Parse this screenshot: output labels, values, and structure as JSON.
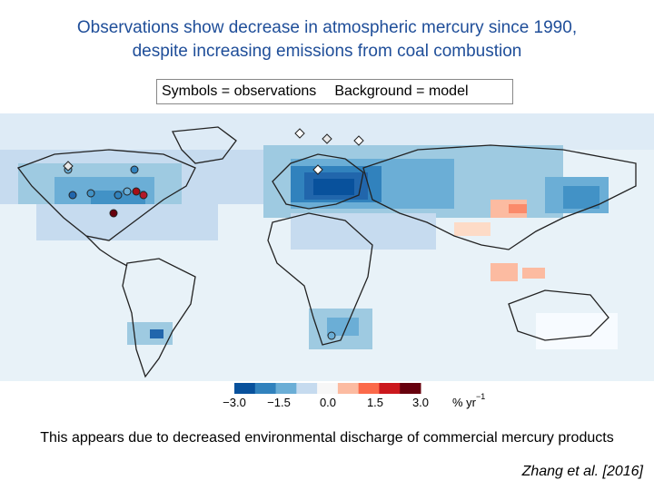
{
  "title": {
    "line1": "Observations show decrease in atmospheric mercury since 1990,",
    "line2": "despite increasing emissions from coal combustion"
  },
  "legend": {
    "symbols": "Symbols = observations",
    "background": "Background = model"
  },
  "colorbar": {
    "ticks": [
      "−3.0",
      "−1.5",
      "0.0",
      "1.5",
      "3.0"
    ],
    "unit_text": "% yr",
    "unit_exp": "−1",
    "colors": [
      "#08519c",
      "#3182bd",
      "#6baed6",
      "#c6dbef",
      "#f7f7f7",
      "#fcbba1",
      "#fb6a4a",
      "#cb181d",
      "#67000d"
    ]
  },
  "caption": "This appears due to decreased environmental discharge of commercial mercury products",
  "citation": "Zhang et al. [2016]"
}
